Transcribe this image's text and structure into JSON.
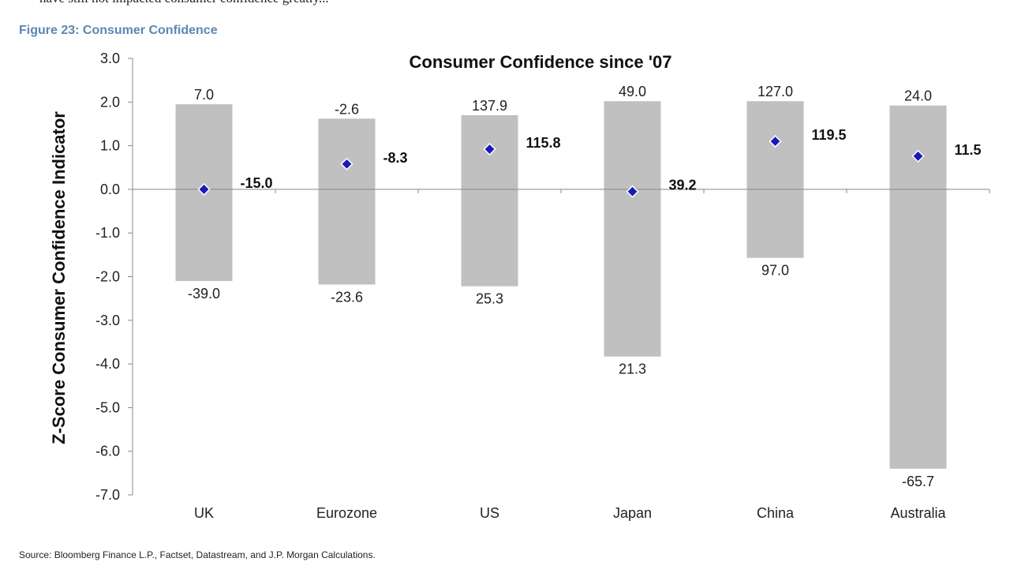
{
  "page": {
    "top_text": "have still not impacted consumer confidence greatly...",
    "figure_caption": "Figure 23: Consumer Confidence",
    "source": "Source: Bloomberg Finance L.P., Factset, Datastream, and J.P. Morgan Calculations."
  },
  "colors": {
    "bar": "#c0c0c0",
    "marker": "#1a1ab8",
    "axis": "#888888"
  },
  "chart_data": {
    "type": "bar",
    "title": "Consumer Confidence since '07",
    "xlabel": "",
    "ylabel": "Z-Score Consumer Confidence Indicator",
    "ylim": [
      -7.0,
      3.0
    ],
    "yticks": [
      3.0,
      2.0,
      1.0,
      0.0,
      -1.0,
      -2.0,
      -3.0,
      -4.0,
      -5.0,
      -6.0,
      -7.0
    ],
    "ytick_labels": [
      "3.0",
      "2.0",
      "1.0",
      "0.0",
      "-1.0",
      "-2.0",
      "-3.0",
      "-4.0",
      "-5.0",
      "-6.0",
      "-7.0"
    ],
    "grid": false,
    "legend": "none",
    "categories": [
      "UK",
      "Eurozone",
      "US",
      "Japan",
      "China",
      "Australia"
    ],
    "series": [
      {
        "name": "",
        "kind": "range_high_z",
        "values": [
          1.95,
          1.62,
          1.7,
          2.02,
          2.02,
          1.92
        ]
      },
      {
        "name": "",
        "kind": "range_low_z",
        "values": [
          -2.1,
          -2.18,
          -2.22,
          -3.83,
          -1.57,
          -6.4
        ]
      },
      {
        "name": "",
        "kind": "current_z",
        "values": [
          0.0,
          0.58,
          0.92,
          -0.05,
          1.1,
          0.76
        ]
      }
    ],
    "high_labels": [
      "7.0",
      "-2.6",
      "137.9",
      "49.0",
      "127.0",
      "24.0"
    ],
    "low_labels": [
      "-39.0",
      "-23.6",
      "25.3",
      "21.3",
      "97.0",
      "-65.7"
    ],
    "current_labels": [
      "-15.0",
      "-8.3",
      "115.8",
      "39.2",
      "119.5",
      "11.5"
    ]
  }
}
